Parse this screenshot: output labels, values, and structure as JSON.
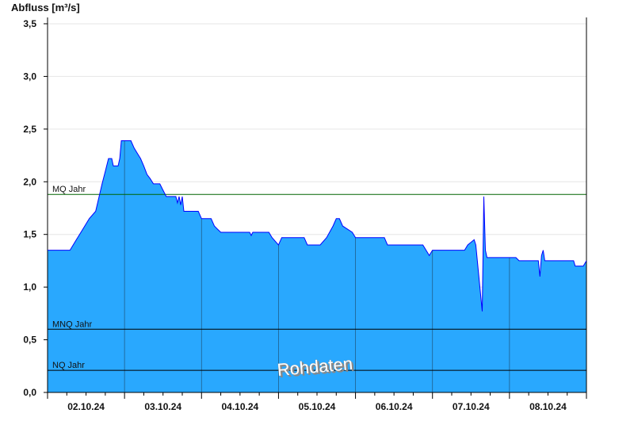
{
  "chart_data": {
    "type": "area",
    "ylabel": "Abfluss [m³/s]",
    "ylim": [
      0,
      3.56
    ],
    "xlim": [
      "2024-10-02T00:00",
      "2024-10-09T00:00"
    ],
    "yticks": [
      0,
      0.5,
      1.0,
      1.5,
      2.0,
      2.5,
      3.0,
      3.5
    ],
    "ytick_labels": [
      "0,0",
      "0,5",
      "1,0",
      "1,5",
      "2,0",
      "2,5",
      "3,0",
      "3,5"
    ],
    "xtick_labels": [
      "02.10.24",
      "03.10.24",
      "04.10.24",
      "05.10.24",
      "06.10.24",
      "07.10.24",
      "08.10.24"
    ],
    "grid": "horizontal",
    "colors": {
      "fill": "#29a8fe",
      "line": "#0000ff",
      "mq": "#006400",
      "ref": "#000000",
      "daylines": "#1f5f8b"
    },
    "watermark": "Rohdaten",
    "reference_lines": [
      {
        "label": "MQ Jahr",
        "value": 1.88
      },
      {
        "label": "MNQ Jahr",
        "value": 0.6
      },
      {
        "label": "NQ Jahr",
        "value": 0.21
      }
    ],
    "series": [
      {
        "points": [
          [
            "2024-10-02T00:00",
            1.35
          ],
          [
            "2024-10-02T07:00",
            1.35
          ],
          [
            "2024-10-02T09:00",
            1.45
          ],
          [
            "2024-10-02T11:00",
            1.55
          ],
          [
            "2024-10-02T13:00",
            1.65
          ],
          [
            "2024-10-02T15:00",
            1.72
          ],
          [
            "2024-10-02T17:00",
            1.98
          ],
          [
            "2024-10-02T18:00",
            2.1
          ],
          [
            "2024-10-02T19:00",
            2.22
          ],
          [
            "2024-10-02T20:00",
            2.22
          ],
          [
            "2024-10-02T20:30",
            2.15
          ],
          [
            "2024-10-02T22:00",
            2.15
          ],
          [
            "2024-10-02T22:30",
            2.22
          ],
          [
            "2024-10-02T23:00",
            2.39
          ],
          [
            "2024-10-03T02:00",
            2.39
          ],
          [
            "2024-10-03T03:00",
            2.32
          ],
          [
            "2024-10-03T04:00",
            2.27
          ],
          [
            "2024-10-03T05:00",
            2.22
          ],
          [
            "2024-10-03T06:00",
            2.15
          ],
          [
            "2024-10-03T07:00",
            2.07
          ],
          [
            "2024-10-03T08:00",
            2.03
          ],
          [
            "2024-10-03T09:00",
            1.98
          ],
          [
            "2024-10-03T11:00",
            1.98
          ],
          [
            "2024-10-03T12:00",
            1.92
          ],
          [
            "2024-10-03T13:00",
            1.86
          ],
          [
            "2024-10-03T16:00",
            1.86
          ],
          [
            "2024-10-03T16:30",
            1.8
          ],
          [
            "2024-10-03T17:00",
            1.86
          ],
          [
            "2024-10-03T17:30",
            1.78
          ],
          [
            "2024-10-03T18:00",
            1.86
          ],
          [
            "2024-10-03T18:30",
            1.72
          ],
          [
            "2024-10-03T23:00",
            1.72
          ],
          [
            "2024-10-04T00:00",
            1.65
          ],
          [
            "2024-10-04T03:00",
            1.65
          ],
          [
            "2024-10-04T04:00",
            1.58
          ],
          [
            "2024-10-04T05:00",
            1.55
          ],
          [
            "2024-10-04T06:00",
            1.52
          ],
          [
            "2024-10-04T15:00",
            1.52
          ],
          [
            "2024-10-04T15:30",
            1.49
          ],
          [
            "2024-10-04T16:00",
            1.52
          ],
          [
            "2024-10-04T21:00",
            1.52
          ],
          [
            "2024-10-04T22:00",
            1.47
          ],
          [
            "2024-10-05T00:00",
            1.4
          ],
          [
            "2024-10-05T01:00",
            1.47
          ],
          [
            "2024-10-05T08:00",
            1.47
          ],
          [
            "2024-10-05T09:00",
            1.4
          ],
          [
            "2024-10-05T13:00",
            1.4
          ],
          [
            "2024-10-05T15:00",
            1.47
          ],
          [
            "2024-10-05T17:00",
            1.58
          ],
          [
            "2024-10-05T18:00",
            1.65
          ],
          [
            "2024-10-05T19:00",
            1.65
          ],
          [
            "2024-10-05T20:00",
            1.58
          ],
          [
            "2024-10-05T23:00",
            1.52
          ],
          [
            "2024-10-06T00:00",
            1.47
          ],
          [
            "2024-10-06T09:00",
            1.47
          ],
          [
            "2024-10-06T10:00",
            1.4
          ],
          [
            "2024-10-06T21:00",
            1.4
          ],
          [
            "2024-10-06T23:00",
            1.3
          ],
          [
            "2024-10-07T00:00",
            1.35
          ],
          [
            "2024-10-07T10:00",
            1.35
          ],
          [
            "2024-10-07T11:00",
            1.4
          ],
          [
            "2024-10-07T13:00",
            1.45
          ],
          [
            "2024-10-07T13:30",
            1.4
          ],
          [
            "2024-10-07T15:30",
            0.77
          ],
          [
            "2024-10-07T16:00",
            1.86
          ],
          [
            "2024-10-07T16:30",
            1.35
          ],
          [
            "2024-10-07T17:00",
            1.28
          ],
          [
            "2024-10-08T02:00",
            1.28
          ],
          [
            "2024-10-08T03:00",
            1.25
          ],
          [
            "2024-10-08T09:00",
            1.25
          ],
          [
            "2024-10-08T09:30",
            1.1
          ],
          [
            "2024-10-08T10:00",
            1.3
          ],
          [
            "2024-10-08T10:30",
            1.35
          ],
          [
            "2024-10-08T11:00",
            1.25
          ],
          [
            "2024-10-08T20:00",
            1.25
          ],
          [
            "2024-10-08T20:30",
            1.2
          ],
          [
            "2024-10-08T23:00",
            1.2
          ],
          [
            "2024-10-09T00:00",
            1.25
          ]
        ]
      }
    ]
  }
}
